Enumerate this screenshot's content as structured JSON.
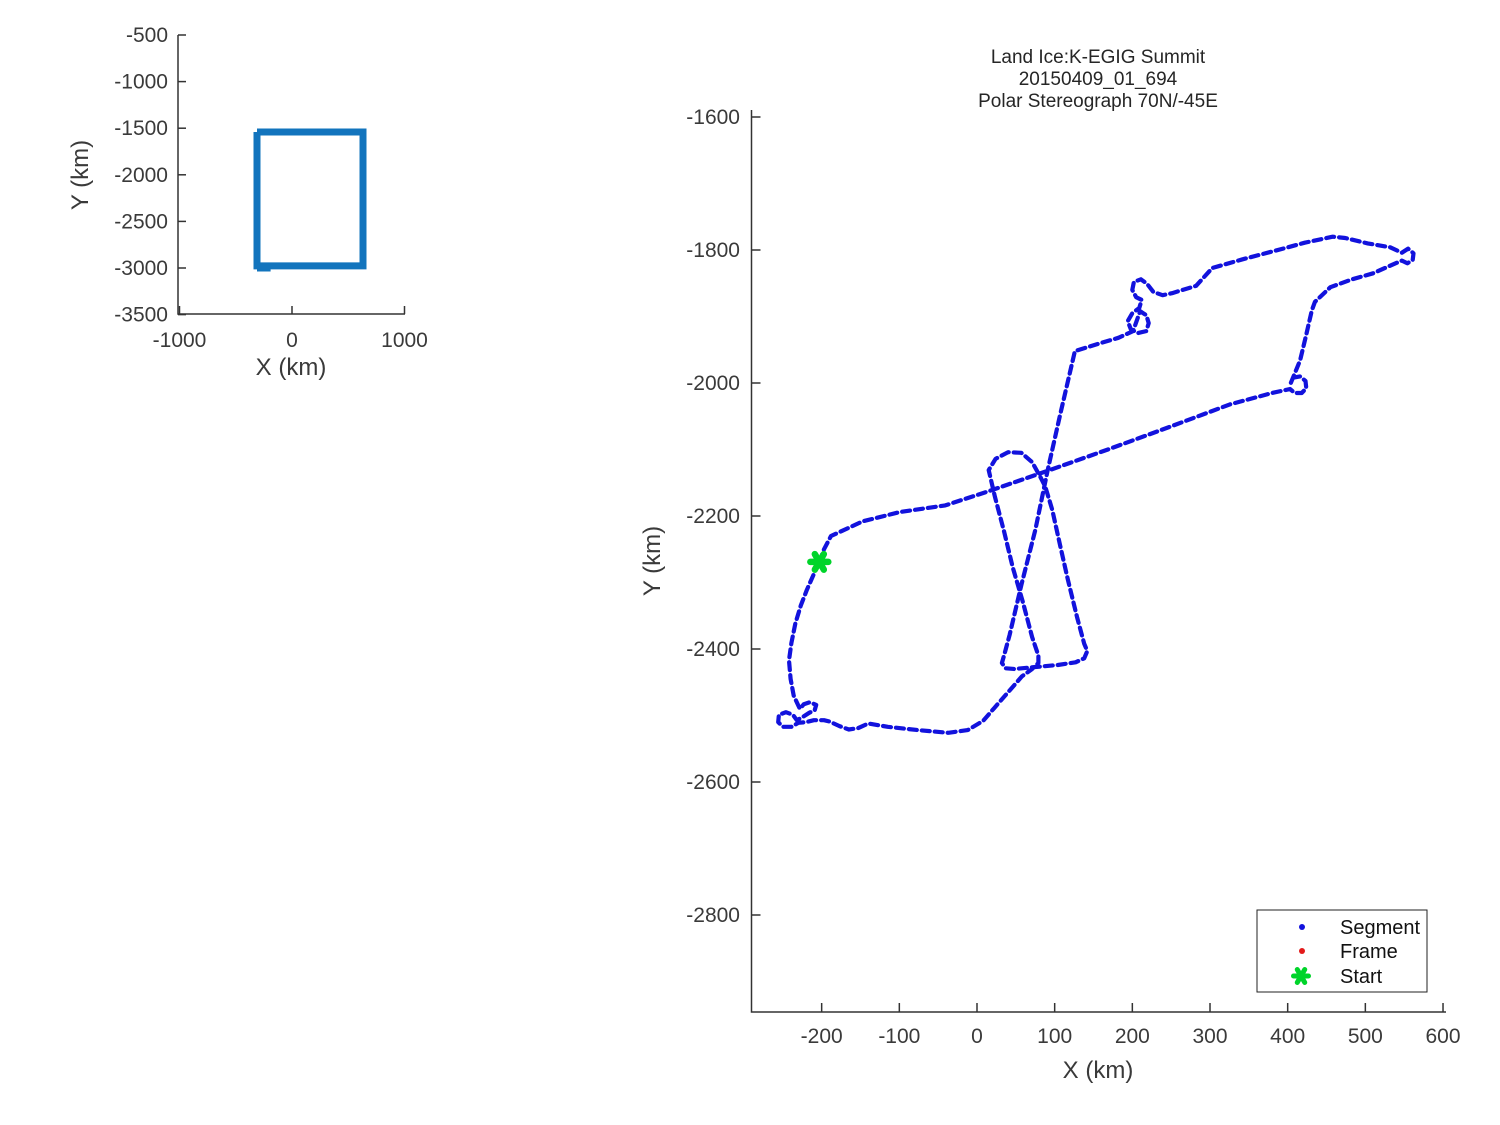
{
  "overview_plot": {
    "xlabel": "X (km)",
    "ylabel": "Y (km)",
    "box_color": "#1274bd"
  },
  "flight_plot": {
    "title_lines": [
      "Land Ice:K-EGIG Summit",
      "20150409_01_694",
      "Polar Stereograph 70N/-45E"
    ],
    "xlabel": "X (km)",
    "ylabel": "Y (km)",
    "path_color": "#1212dd",
    "start_color": "#00d42a",
    "frame_color": "#e31a1a",
    "legend": {
      "items": [
        {
          "label": "Segment",
          "marker": "dot",
          "color": "#1212dd"
        },
        {
          "label": "Frame",
          "marker": "dot",
          "color": "#e31a1a"
        },
        {
          "label": "Start",
          "marker": "asterisk",
          "color": "#00d42a"
        }
      ]
    }
  },
  "chart_data": [
    {
      "type": "line",
      "name": "coverage-overview",
      "xlabel": "X (km)",
      "ylabel": "Y (km)",
      "xlim": [
        -1000,
        1000
      ],
      "ylim": [
        -3500,
        -500
      ],
      "xticks": [
        -1000,
        0,
        1000
      ],
      "yticks": [
        -500,
        -1000,
        -1500,
        -2000,
        -2500,
        -3000,
        -3500
      ],
      "grid": false,
      "series": [
        {
          "name": "coverage-box",
          "points": [
            [
              -311,
              -1541
            ],
            [
              631,
              -1541
            ],
            [
              631,
              -2978
            ],
            [
              -311,
              -2978
            ],
            [
              -311,
              -1541
            ]
          ]
        },
        {
          "name": "coverage-box-lip",
          "points": [
            [
              -311,
              -3000
            ],
            [
              -190,
              -3000
            ]
          ]
        }
      ]
    },
    {
      "type": "line",
      "name": "flight-track",
      "title": "Land Ice:K-EGIG Summit 20150409_01_694 Polar Stereograph 70N/-45E",
      "xlabel": "X (km)",
      "ylabel": "Y (km)",
      "xlim": [
        -291,
        604
      ],
      "ylim": [
        -2946,
        -1590
      ],
      "xticks": [
        -200,
        -100,
        0,
        100,
        200,
        300,
        400,
        500,
        600
      ],
      "yticks": [
        -1600,
        -1800,
        -2000,
        -2200,
        -2400,
        -2600,
        -2800
      ],
      "grid": false,
      "legend_position": "lower right",
      "legend_entries": [
        "Segment",
        "Frame",
        "Start"
      ],
      "start_point": [
        -203,
        -2269
      ],
      "series": [
        {
          "name": "segment-path",
          "points": [
            [
              -203,
              -2269
            ],
            [
              -197,
              -2250
            ],
            [
              -188,
              -2230
            ],
            [
              -147,
              -2208
            ],
            [
              -99,
              -2194
            ],
            [
              -41,
              -2184
            ],
            [
              17,
              -2162
            ],
            [
              91,
              -2132
            ],
            [
              171,
              -2099
            ],
            [
              248,
              -2066
            ],
            [
              326,
              -2032
            ],
            [
              380,
              -2015
            ],
            [
              403,
              -2009
            ],
            [
              409,
              -2015
            ],
            [
              418,
              -2015
            ],
            [
              424,
              -2008
            ],
            [
              423,
              -1997
            ],
            [
              416,
              -1990
            ],
            [
              407,
              -1992
            ],
            [
              404,
              -2000
            ],
            [
              416,
              -1966
            ],
            [
              424,
              -1927
            ],
            [
              431,
              -1891
            ],
            [
              435,
              -1878
            ],
            [
              455,
              -1856
            ],
            [
              483,
              -1844
            ],
            [
              510,
              -1835
            ],
            [
              533,
              -1823
            ],
            [
              547,
              -1816
            ],
            [
              554,
              -1820
            ],
            [
              561,
              -1815
            ],
            [
              562,
              -1805
            ],
            [
              555,
              -1798
            ],
            [
              547,
              -1804
            ],
            [
              532,
              -1796
            ],
            [
              503,
              -1790
            ],
            [
              474,
              -1782
            ],
            [
              458,
              -1780
            ],
            [
              422,
              -1789
            ],
            [
              384,
              -1801
            ],
            [
              342,
              -1814
            ],
            [
              303,
              -1827
            ],
            [
              282,
              -1854
            ],
            [
              265,
              -1860
            ],
            [
              251,
              -1865
            ],
            [
              239,
              -1868
            ],
            [
              227,
              -1863
            ],
            [
              219,
              -1851
            ],
            [
              211,
              -1844
            ],
            [
              202,
              -1848
            ],
            [
              200,
              -1860
            ],
            [
              205,
              -1871
            ],
            [
              212,
              -1875
            ],
            [
              209,
              -1887
            ],
            [
              200,
              -1895
            ],
            [
              194,
              -1907
            ],
            [
              198,
              -1919
            ],
            [
              207,
              -1925
            ],
            [
              218,
              -1922
            ],
            [
              221,
              -1910
            ],
            [
              218,
              -1898
            ],
            [
              210,
              -1892
            ],
            [
              201,
              -1922
            ],
            [
              182,
              -1932
            ],
            [
              156,
              -1941
            ],
            [
              126,
              -1952
            ],
            [
              107,
              -2048
            ],
            [
              91,
              -2131
            ],
            [
              75,
              -2221
            ],
            [
              57,
              -2304
            ],
            [
              42,
              -2379
            ],
            [
              35,
              -2409
            ],
            [
              32,
              -2421
            ],
            [
              37,
              -2429
            ],
            [
              48,
              -2430
            ],
            [
              75,
              -2427
            ],
            [
              104,
              -2424
            ],
            [
              127,
              -2420
            ],
            [
              138,
              -2414
            ],
            [
              142,
              -2403
            ],
            [
              138,
              -2392
            ],
            [
              129,
              -2353
            ],
            [
              117,
              -2296
            ],
            [
              107,
              -2244
            ],
            [
              97,
              -2191
            ],
            [
              88,
              -2156
            ],
            [
              81,
              -2140
            ],
            [
              71,
              -2119
            ],
            [
              57,
              -2105
            ],
            [
              40,
              -2104
            ],
            [
              24,
              -2114
            ],
            [
              15,
              -2131
            ],
            [
              23,
              -2171
            ],
            [
              35,
              -2224
            ],
            [
              46,
              -2277
            ],
            [
              59,
              -2329
            ],
            [
              71,
              -2382
            ],
            [
              79,
              -2410
            ],
            [
              79,
              -2421
            ],
            [
              71,
              -2430
            ],
            [
              58,
              -2441
            ],
            [
              40,
              -2465
            ],
            [
              22,
              -2489
            ],
            [
              8,
              -2508
            ],
            [
              -12,
              -2522
            ],
            [
              -37,
              -2526
            ],
            [
              -76,
              -2522
            ],
            [
              -115,
              -2517
            ],
            [
              -140,
              -2512
            ],
            [
              -153,
              -2519
            ],
            [
              -165,
              -2521
            ],
            [
              -177,
              -2516
            ],
            [
              -190,
              -2509
            ],
            [
              -197,
              -2507
            ],
            [
              -210,
              -2507
            ],
            [
              -220,
              -2510
            ],
            [
              -230,
              -2511
            ],
            [
              -239,
              -2517
            ],
            [
              -250,
              -2517
            ],
            [
              -256,
              -2510
            ],
            [
              -255,
              -2499
            ],
            [
              -246,
              -2495
            ],
            [
              -237,
              -2499
            ],
            [
              -232,
              -2507
            ],
            [
              -224,
              -2502
            ],
            [
              -216,
              -2496
            ],
            [
              -209,
              -2492
            ],
            [
              -207,
              -2484
            ],
            [
              -215,
              -2480
            ],
            [
              -223,
              -2483
            ],
            [
              -228,
              -2490
            ],
            [
              -236,
              -2470
            ],
            [
              -240,
              -2445
            ],
            [
              -242,
              -2417
            ],
            [
              -239,
              -2391
            ],
            [
              -234,
              -2362
            ],
            [
              -227,
              -2335
            ],
            [
              -219,
              -2311
            ],
            [
              -210,
              -2287
            ],
            [
              -203,
              -2269
            ]
          ]
        }
      ]
    }
  ]
}
